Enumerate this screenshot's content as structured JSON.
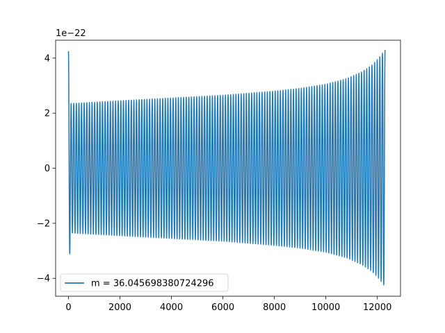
{
  "chart_data": {
    "type": "line",
    "title": "",
    "xlabel": "",
    "ylabel": "",
    "xlim": [
      -500,
      12900
    ],
    "ylim": [
      -4.65,
      4.65
    ],
    "y_offset_text": "1e−22",
    "x_ticks": [
      0,
      2000,
      4000,
      6000,
      8000,
      10000,
      12000
    ],
    "x_tick_labels": [
      "0",
      "2000",
      "4000",
      "6000",
      "8000",
      "10000",
      "12000"
    ],
    "y_ticks": [
      -4,
      -2,
      0,
      2,
      4
    ],
    "y_tick_labels": [
      "−4",
      "−2",
      "0",
      "2",
      "4"
    ],
    "grid": false,
    "legend_position": "lower-left",
    "series": [
      {
        "name": "m = 36.045698380724296",
        "color": "#1f77b4",
        "x_range": [
          0,
          12300
        ],
        "initial_spike": 4.25,
        "cycles": 121,
        "envelope": {
          "x": [
            100,
            2000,
            4000,
            6000,
            8000,
            9000,
            10000,
            10800,
            11400,
            11800,
            12100,
            12300
          ],
          "y": [
            2.35,
            2.45,
            2.55,
            2.65,
            2.8,
            2.9,
            3.05,
            3.25,
            3.5,
            3.75,
            4.05,
            4.3
          ]
        }
      }
    ]
  }
}
